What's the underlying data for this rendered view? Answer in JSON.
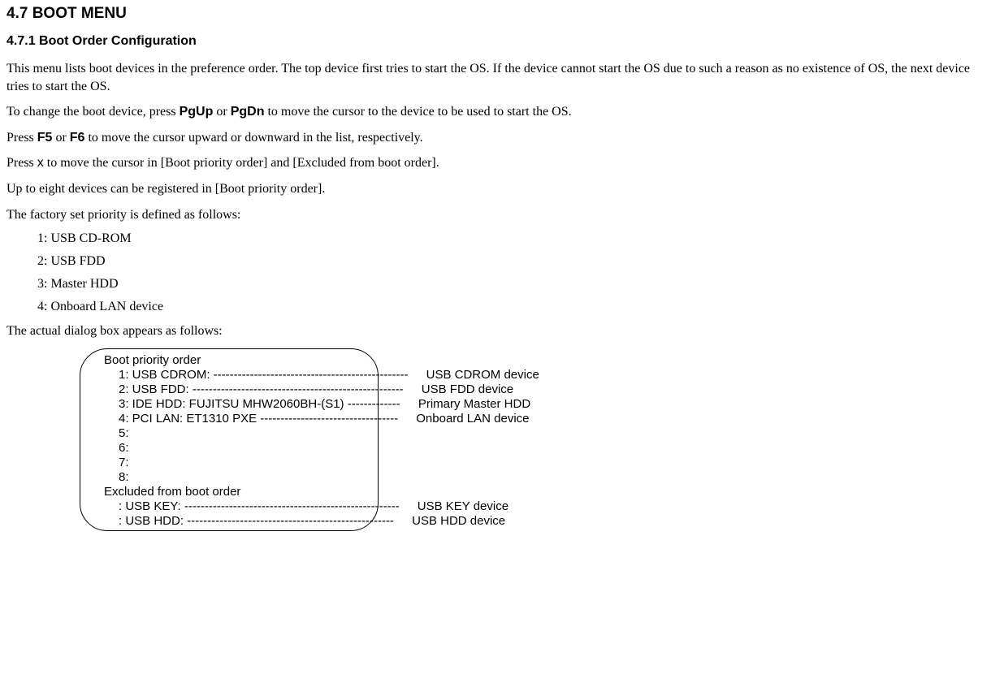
{
  "headings": {
    "h1": "4.7    BOOT MENU",
    "h2": "4.7.1  Boot Order Configuration"
  },
  "paragraphs": {
    "p1a": "This menu lists boot devices in the preference order. The top device first tries to start the OS. If the device cannot start the OS due to such a reason as no existence of OS, the next device tries to start the OS.",
    "p2_pre": "To change the boot device, press ",
    "p2_key1": "PgUp",
    "p2_mid": " or ",
    "p2_key2": "PgDn",
    "p2_post": " to move the cursor to the device to be used to start the OS.",
    "p3_pre": "Press ",
    "p3_key1": "F5",
    "p3_mid": " or ",
    "p3_key2": "F6",
    "p3_post": " to move the cursor upward or downward in the list, respectively.",
    "p4_pre": "Press ",
    "p4_key": "x",
    "p4_post": " to move the cursor in [Boot priority order] and [Excluded from boot order].",
    "p5": "Up to eight devices can be registered in [Boot priority order].",
    "p6": "The factory set priority is defined as follows:",
    "p7": "The actual dialog box appears as follows:"
  },
  "factory_priority": {
    "i1": "1: USB CD-ROM",
    "i2": "2: USB FDD",
    "i3": "3: Master HDD",
    "i4": "4: Onboard LAN device"
  },
  "dialog": {
    "header": "Boot priority order",
    "rows": {
      "r1": {
        "label": "1: USB CDROM:  ------------------------------------------------",
        "desc": "USB CDROM device"
      },
      "r2": {
        "label": "2: USB FDD:  ----------------------------------------------------",
        "desc": "USB FDD device"
      },
      "r3": {
        "label": "3: IDE HDD: FUJITSU MHW2060BH-(S1)  -------------",
        "desc": "Primary Master HDD"
      },
      "r4": {
        "label": "4: PCI LAN: ET1310 PXE   ----------------------------------",
        "desc": "Onboard LAN device"
      },
      "r5": {
        "label": "5:",
        "desc": ""
      },
      "r6": {
        "label": "6:",
        "desc": ""
      },
      "r7": {
        "label": "7:",
        "desc": ""
      },
      "r8": {
        "label": "8:",
        "desc": ""
      }
    },
    "excluded_header": "Excluded from boot order",
    "excluded": {
      "e1": {
        "label": ": USB KEY:  -----------------------------------------------------",
        "desc": "USB KEY device"
      },
      "e2": {
        "label": ": USB HDD:   ---------------------------------------------------",
        "desc": "USB HDD device"
      }
    }
  }
}
